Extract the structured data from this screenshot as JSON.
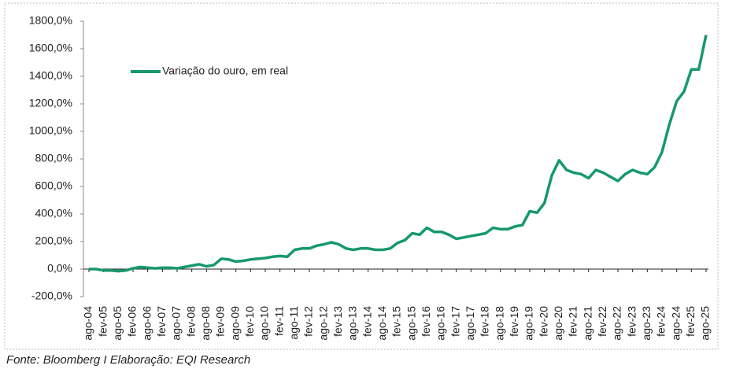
{
  "chart_data": {
    "type": "line",
    "source": "Fonte: Bloomberg I Elaboração: EQI Research",
    "categories": [
      "ago-04",
      null,
      "fev-05",
      null,
      "ago-05",
      null,
      "fev-06",
      null,
      "ago-06",
      null,
      "fev-07",
      null,
      "ago-07",
      null,
      "fev-08",
      null,
      "ago-08",
      null,
      "fev-09",
      null,
      "ago-09",
      null,
      "fev-10",
      null,
      "ago-10",
      null,
      "fev-11",
      null,
      "ago-11",
      null,
      "fev-12",
      null,
      "ago-12",
      null,
      "fev-13",
      null,
      "ago-13",
      null,
      "fev-14",
      null,
      "ago-14",
      null,
      "fev-15",
      null,
      "ago-15",
      null,
      "fev-16",
      null,
      "ago-16",
      null,
      "fev-17",
      null,
      "ago-17",
      null,
      "fev-18",
      null,
      "ago-18",
      null,
      "fev-19",
      null,
      "ago-19",
      null,
      "fev-20",
      null,
      "ago-20",
      null,
      "fev-21",
      null,
      "ago-21",
      null,
      "fev-22",
      null,
      "ago-22",
      null,
      "fev-23",
      null,
      "ago-23",
      null,
      "fev-24",
      null,
      "ago-24",
      null,
      "fev-25",
      null,
      "ago-25"
    ],
    "series": [
      {
        "name": "Variação do ouro, em real",
        "color": "#17996a",
        "values": [
          0,
          0,
          -10,
          -10,
          -15,
          -10,
          5,
          15,
          10,
          5,
          10,
          10,
          5,
          15,
          25,
          35,
          20,
          30,
          75,
          70,
          55,
          60,
          70,
          75,
          80,
          90,
          95,
          90,
          140,
          150,
          150,
          170,
          180,
          195,
          180,
          150,
          140,
          150,
          150,
          140,
          140,
          150,
          190,
          210,
          260,
          250,
          300,
          270,
          270,
          250,
          220,
          230,
          240,
          250,
          260,
          300,
          290,
          290,
          310,
          320,
          420,
          410,
          480,
          680,
          790,
          720,
          700,
          690,
          660,
          720,
          700,
          670,
          640,
          690,
          720,
          700,
          690,
          740,
          850,
          1050,
          1220,
          1290,
          1450,
          1450,
          1700
        ]
      }
    ],
    "ylim": [
      -200,
      1800
    ],
    "yticks": [
      {
        "value": -200,
        "label": "-200,0%"
      },
      {
        "value": 0,
        "label": "0,0%"
      },
      {
        "value": 200,
        "label": "200,0%"
      },
      {
        "value": 400,
        "label": "400,0%"
      },
      {
        "value": 600,
        "label": "600,0%"
      },
      {
        "value": 800,
        "label": "800,0%"
      },
      {
        "value": 1000,
        "label": "1000,0%"
      },
      {
        "value": 1200,
        "label": "1200,0%"
      },
      {
        "value": 1400,
        "label": "1400,0%"
      },
      {
        "value": 1600,
        "label": "1600,0%"
      },
      {
        "value": 1800,
        "label": "1800,0%"
      }
    ],
    "legend": "top-left"
  }
}
